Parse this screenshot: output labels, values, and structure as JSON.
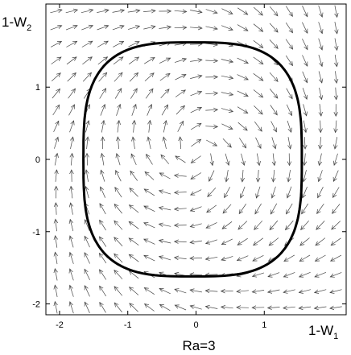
{
  "chart_data": {
    "type": "vector-field",
    "xlabel": "1-W",
    "xlabel_sub": "1",
    "ylabel": "1-W",
    "ylabel_sub": "2",
    "caption": "Ra=3",
    "xlim": [
      -2.2,
      2.2
    ],
    "ylim": [
      -2.15,
      2.15
    ],
    "x_ticks": [
      -2,
      -1,
      0,
      1
    ],
    "x_tick_labels": [
      "-2",
      "-1",
      "0",
      "1"
    ],
    "y_ticks": [
      -2,
      -1,
      0,
      1
    ],
    "y_tick_labels": [
      "-2",
      "-1",
      "0",
      "1"
    ],
    "field": {
      "x_range": [
        -2.05,
        2.05
      ],
      "y_range": [
        -2.05,
        2.05
      ],
      "grid_count": 19,
      "center": [
        0,
        0.1
      ]
    },
    "limit_cycle": {
      "center": [
        -0.05,
        0
      ],
      "half_width": 1.6,
      "half_height": 1.62,
      "squareness_exponent": 3.2
    },
    "grid": false,
    "legend": "none"
  }
}
